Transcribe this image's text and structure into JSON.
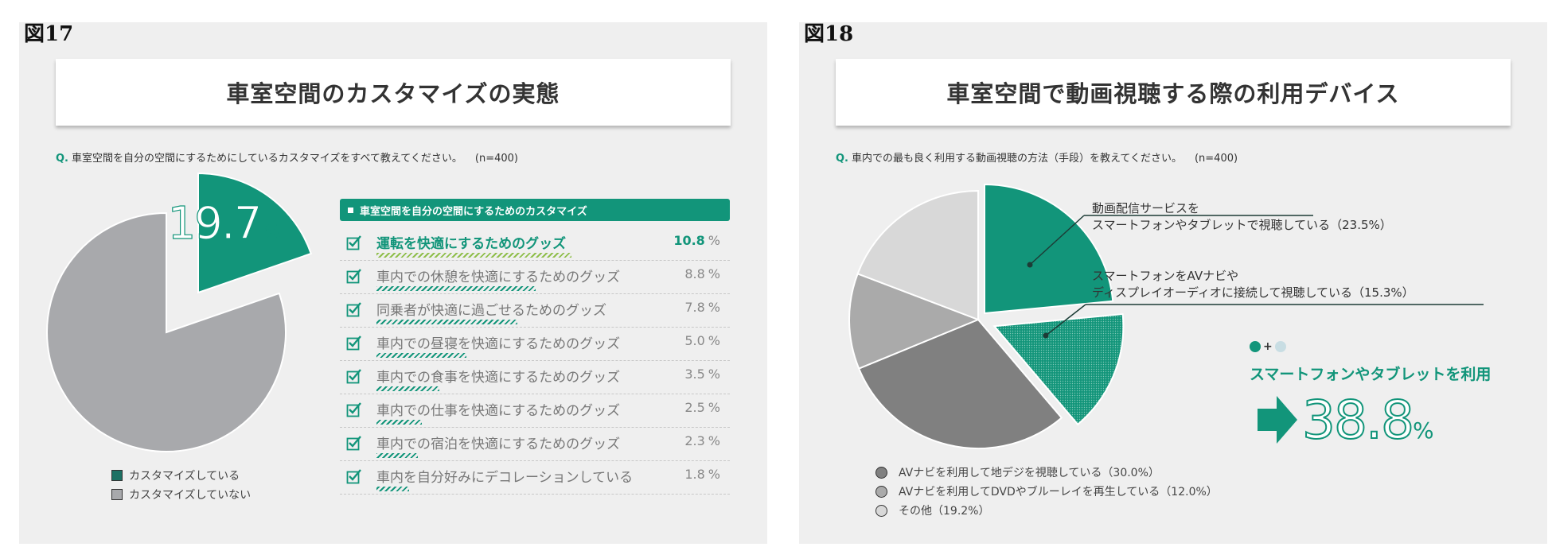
{
  "colors": {
    "teal": "#12957a",
    "dark_teal": "#1e7164",
    "gray_pie": "#a8a9ac",
    "mid_gray": "#808080",
    "light_gray": "#aaaaaa",
    "pale_gray": "#d8d8d8",
    "light_blue": "#c8dde3"
  },
  "fig17": {
    "label": "図17",
    "title": "車室空間のカスタマイズの実態",
    "question_prefix": "Q.",
    "question": "車室空間を自分の空間にするためにしているカスタマイズをすべて教えてください。",
    "n": "(n=400)",
    "pie_big_value": "19.7",
    "pie_big_unit": "%",
    "list_title": "車室空間を自分の空間にするためのカスタマイズ",
    "pct_sign": "%",
    "legend": [
      "カスタマイズしている",
      "カスタマイズしていない"
    ],
    "chart_data": {
      "type": "pie",
      "labels": [
        "カスタマイズしている",
        "カスタマイズしていない"
      ],
      "values": [
        19.7,
        80.3
      ]
    },
    "bar_data": {
      "type": "bar",
      "categories": [
        "運転を快適にするためのグッズ",
        "車内での休憩を快適にするためのグッズ",
        "同乗者が快適に過ごせるためのグッズ",
        "車内での昼寝を快適にするためのグッズ",
        "車内での食事を快適にするためのグッズ",
        "車内での仕事を快適にするためのグッズ",
        "車内での宿泊を快適にするためのグッズ",
        "車内を自分好みにデコレーションしている"
      ],
      "values": [
        10.8,
        8.8,
        7.8,
        5.0,
        3.5,
        2.5,
        2.3,
        1.8
      ],
      "value_labels": [
        "10.8",
        "8.8",
        "7.8",
        "5.0",
        "3.5",
        "2.5",
        "2.3",
        "1.8"
      ]
    }
  },
  "fig18": {
    "label": "図18",
    "title": "車室空間で動画視聴する際の利用デバイス",
    "question_prefix": "Q.",
    "question": "車内での最も良く利用する動画視聴の方法（手段）を教えてください。",
    "n": "(n=400)",
    "annot1": [
      "動画配信サービスを",
      "スマートフォンやタブレットで視聴している（23.5%）"
    ],
    "annot2": [
      "スマートフォンをAVナビや",
      "ディスプレイオーディオに接続して視聴している（15.3%）"
    ],
    "legend": [
      "AVナビを利用して地デジを視聴している（30.0%）",
      "AVナビを利用してDVDやブルーレイを再生している（12.0%）",
      "その他（19.2%）"
    ],
    "plus": "+",
    "combo_title": "スマートフォンやタブレットを利用",
    "combo_value": "38.8",
    "combo_unit": "%",
    "chart_data": {
      "type": "pie",
      "labels": [
        "動画配信サービスをスマートフォンやタブレットで視聴している",
        "スマートフォンをAVナビやディスプレイオーディオに接続して視聴している",
        "AVナビを利用して地デジを視聴している",
        "AVナビを利用してDVDやブルーレイを再生している",
        "その他"
      ],
      "values": [
        23.5,
        15.3,
        30.0,
        12.0,
        19.2
      ]
    }
  }
}
